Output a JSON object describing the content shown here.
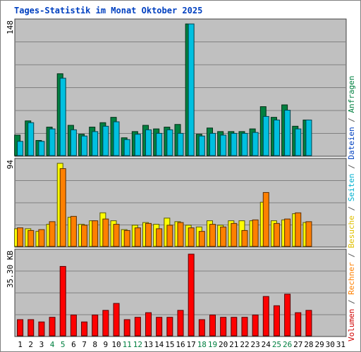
{
  "chart_data": {
    "type": "bar",
    "title": "Tages-Statistik im Monat Oktober 2025",
    "days": [
      "1",
      "2",
      "3",
      "4",
      "5",
      "6",
      "7",
      "8",
      "9",
      "10",
      "11",
      "12",
      "13",
      "14",
      "15",
      "16",
      "17",
      "18",
      "19",
      "20",
      "21",
      "22",
      "23",
      "24",
      "25",
      "26",
      "27",
      "28",
      "29",
      "30",
      "31"
    ],
    "weekend_days": [
      "4",
      "5",
      "11",
      "12",
      "18",
      "19",
      "25",
      "26"
    ],
    "panels": [
      {
        "id": "top",
        "ymax_label": "148",
        "ymax": 148,
        "series": [
          {
            "name": "Anfragen",
            "color": "#008040",
            "values": [
              23,
              39,
              17,
              32,
              92,
              34,
              24,
              32,
              37,
              43,
              20,
              27,
              34,
              30,
              32,
              35,
              148,
              24,
              31,
              27,
              27,
              27,
              30,
              55,
              43,
              57,
              33,
              40,
              0,
              0,
              0
            ]
          },
          {
            "name": "Dateien",
            "color": "#00c0e0",
            "values": [
              16,
              37,
              16,
              30,
              87,
              29,
              22,
              27,
              33,
              38,
              18,
              24,
              29,
              25,
              29,
              25,
              148,
              22,
              25,
              23,
              25,
              25,
              26,
              44,
              40,
              51,
              30,
              40,
              0,
              0,
              0
            ]
          }
        ]
      },
      {
        "id": "mid",
        "ymax_label": "94",
        "ymax": 94,
        "series": [
          {
            "name": "Seiten",
            "color": "#ffff00",
            "values": [
              20,
              20,
              17,
              25,
              94,
              33,
              25,
              29,
              38,
              29,
              19,
              24,
              27,
              25,
              32,
              28,
              24,
              22,
              29,
              24,
              29,
              29,
              29,
              50,
              29,
              30,
              37,
              27,
              0,
              0,
              0
            ]
          },
          {
            "name": "Besuche",
            "color": "#ff8000",
            "values": [
              21,
              18,
              19,
              28,
              88,
              34,
              24,
              29,
              31,
              25,
              18,
              21,
              26,
              20,
              24,
              27,
              21,
              17,
              25,
              22,
              26,
              18,
              30,
              61,
              26,
              31,
              38,
              28,
              0,
              0,
              0
            ]
          }
        ]
      },
      {
        "id": "bot",
        "ymax_label": "35.30 KB",
        "ymax": 35.3,
        "series": [
          {
            "name": "Volumen",
            "color": "#ff0000",
            "values": [
              7,
              7,
              6,
              8,
              30,
              9,
              6,
              9,
              11,
              14,
              7,
              8,
              10,
              8,
              8,
              11,
              35.3,
              7,
              9,
              8,
              8,
              8,
              9,
              17,
              13,
              18,
              10,
              11,
              0,
              0,
              0
            ]
          }
        ]
      }
    ],
    "legend_right": [
      {
        "text": "Volumen",
        "color": "#d00000"
      },
      {
        "text": " / ",
        "color": "#555555"
      },
      {
        "text": "Rechner",
        "color": "#ff8000"
      },
      {
        "text": " / ",
        "color": "#555555"
      },
      {
        "text": "Besuche",
        "color": "#e0c000"
      },
      {
        "text": " / ",
        "color": "#555555"
      },
      {
        "text": "Seiten",
        "color": "#00b0d0"
      },
      {
        "text": " / ",
        "color": "#555555"
      },
      {
        "text": "Dateien",
        "color": "#0040c0"
      },
      {
        "text": " / ",
        "color": "#555555"
      },
      {
        "text": "Anfragen",
        "color": "#008040"
      }
    ],
    "colors": {
      "plot_bg": "#c0c0c0",
      "grid": "#808080",
      "title": "#0040c0",
      "weekday_tick": "#000000",
      "weekend_tick": "#008040"
    }
  }
}
